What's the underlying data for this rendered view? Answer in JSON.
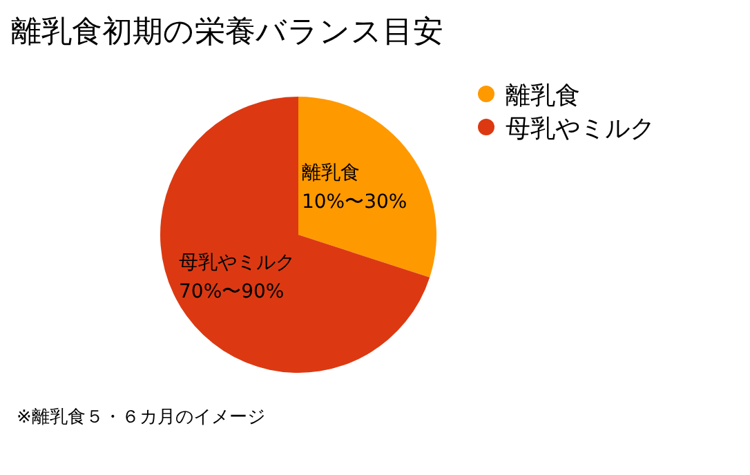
{
  "chart_data": {
    "type": "pie",
    "title": "離乳食初期の栄養バランス目安",
    "categories": [
      "離乳食",
      "母乳やミルク"
    ],
    "values": [
      30,
      70
    ],
    "colors": [
      "#ff9900",
      "#dc3912"
    ],
    "value_labels": [
      "10%〜30%",
      "70%〜90%"
    ],
    "legend": "top right",
    "annotations": [
      "※離乳食５・６カ月のイメージ"
    ]
  }
}
